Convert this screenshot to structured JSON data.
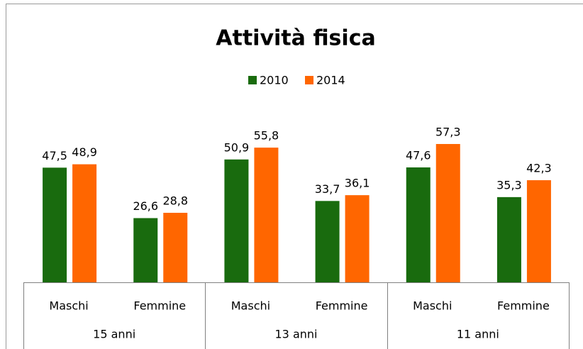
{
  "chart_data": {
    "type": "bar",
    "title": "Attività fisica",
    "categories": [
      "Maschi",
      "Femmine",
      "Maschi",
      "Femmine",
      "Maschi",
      "Femmine"
    ],
    "groups": [
      "15 anni",
      "13 anni",
      "11 anni"
    ],
    "series": [
      {
        "name": "2010",
        "color": "#196b0e",
        "values": [
          47.5,
          26.6,
          50.9,
          33.7,
          47.6,
          35.3
        ],
        "value_labels": [
          "47,5",
          "26,6",
          "50,9",
          "33,7",
          "47,6",
          "35,3"
        ]
      },
      {
        "name": "2014",
        "color": "#ff6600",
        "values": [
          48.9,
          28.8,
          55.8,
          36.1,
          57.3,
          42.3
        ],
        "value_labels": [
          "48,9",
          "28,8",
          "55,8",
          "36,1",
          "57,3",
          "42,3"
        ]
      }
    ],
    "legend": "top"
  }
}
